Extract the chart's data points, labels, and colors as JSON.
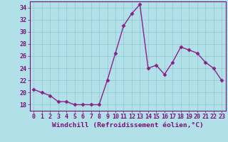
{
  "x": [
    0,
    1,
    2,
    3,
    4,
    5,
    6,
    7,
    8,
    9,
    10,
    11,
    12,
    13,
    14,
    15,
    16,
    17,
    18,
    19,
    20,
    21,
    22,
    23
  ],
  "y": [
    20.5,
    20.0,
    19.5,
    18.5,
    18.5,
    18.0,
    18.0,
    18.0,
    18.0,
    22.0,
    26.5,
    31.0,
    33.0,
    34.5,
    24.0,
    24.5,
    23.0,
    25.0,
    27.5,
    27.0,
    26.5,
    25.0,
    24.0,
    22.0
  ],
  "line_color": "#882288",
  "marker": "D",
  "marker_size": 2.5,
  "bg_color": "#b2e0e8",
  "grid_color": "#90c8d0",
  "xlabel": "Windchill (Refroidissement éolien,°C)",
  "ylim": [
    17.0,
    35.0
  ],
  "xlim": [
    -0.5,
    23.5
  ],
  "yticks": [
    18,
    20,
    22,
    24,
    26,
    28,
    30,
    32,
    34
  ],
  "xticks": [
    0,
    1,
    2,
    3,
    4,
    5,
    6,
    7,
    8,
    9,
    10,
    11,
    12,
    13,
    14,
    15,
    16,
    17,
    18,
    19,
    20,
    21,
    22,
    23
  ],
  "tick_color": "#771177",
  "label_fontsize": 6.8,
  "tick_fontsize": 6.0,
  "spine_color": "#771177",
  "line_width": 1.0
}
